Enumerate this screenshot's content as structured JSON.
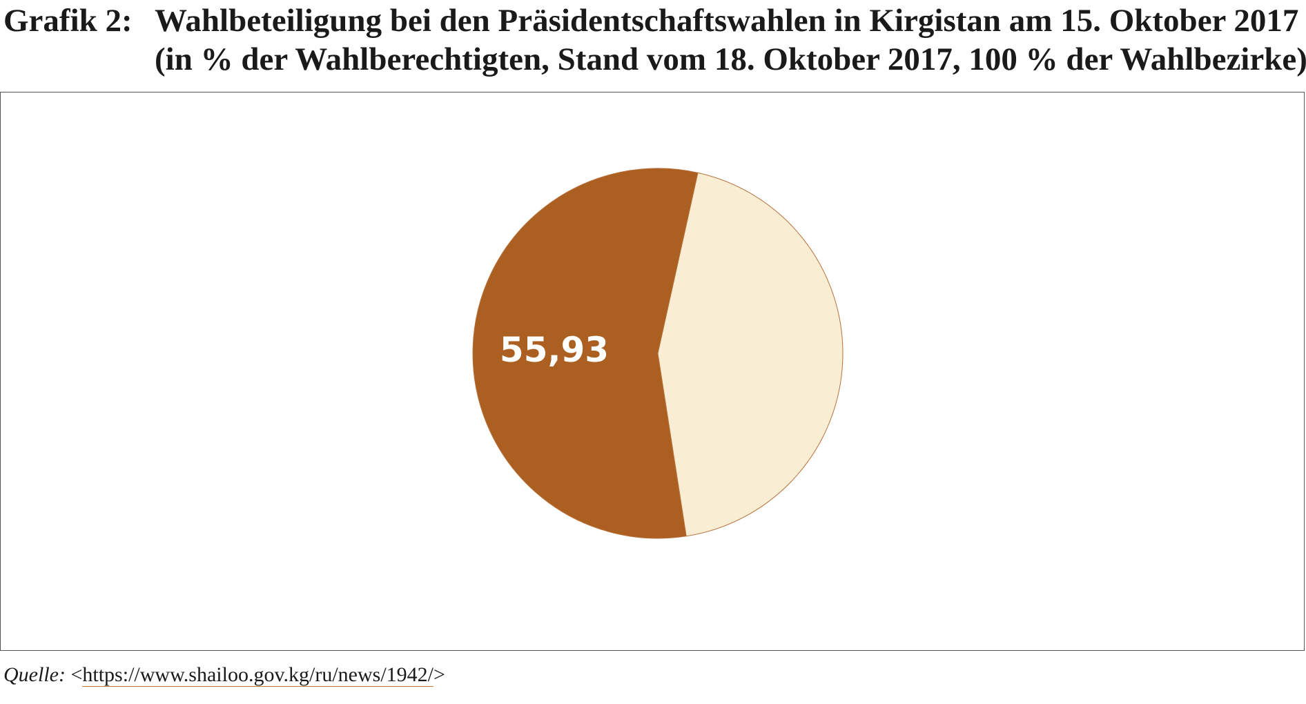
{
  "header": {
    "prefix": "Grafik 2:",
    "title": "Wahlbeteiligung bei den Präsidentschaftswahlen in Kirgistan am 15. Oktober 2017",
    "subtitle": "(in % der Wahlberechtigten, Stand vom 18. Oktober 2017, 100 % der Wahlbezirke)"
  },
  "chart_data": {
    "type": "pie",
    "title": "Wahlbeteiligung bei den Präsidentschaftswahlen in Kirgistan am 15. Oktober 2017",
    "subtitle": "(in % der Wahlberechtigten, Stand vom 18. Oktober 2017, 100 % der Wahlbezirke)",
    "slices": [
      {
        "value": 55.93,
        "label": "55,93",
        "color": "#ab6022"
      },
      {
        "value": 44.07,
        "label": "",
        "color": "#f9eed4"
      }
    ],
    "slice_outline_color": "#b8703a",
    "label_color": "#ffffff",
    "legend": "none"
  },
  "source": {
    "label": "Quelle:",
    "prefix": "<",
    "url": "https://www.shailoo.gov.kg/ru/news/1942/",
    "suffix": ">"
  }
}
